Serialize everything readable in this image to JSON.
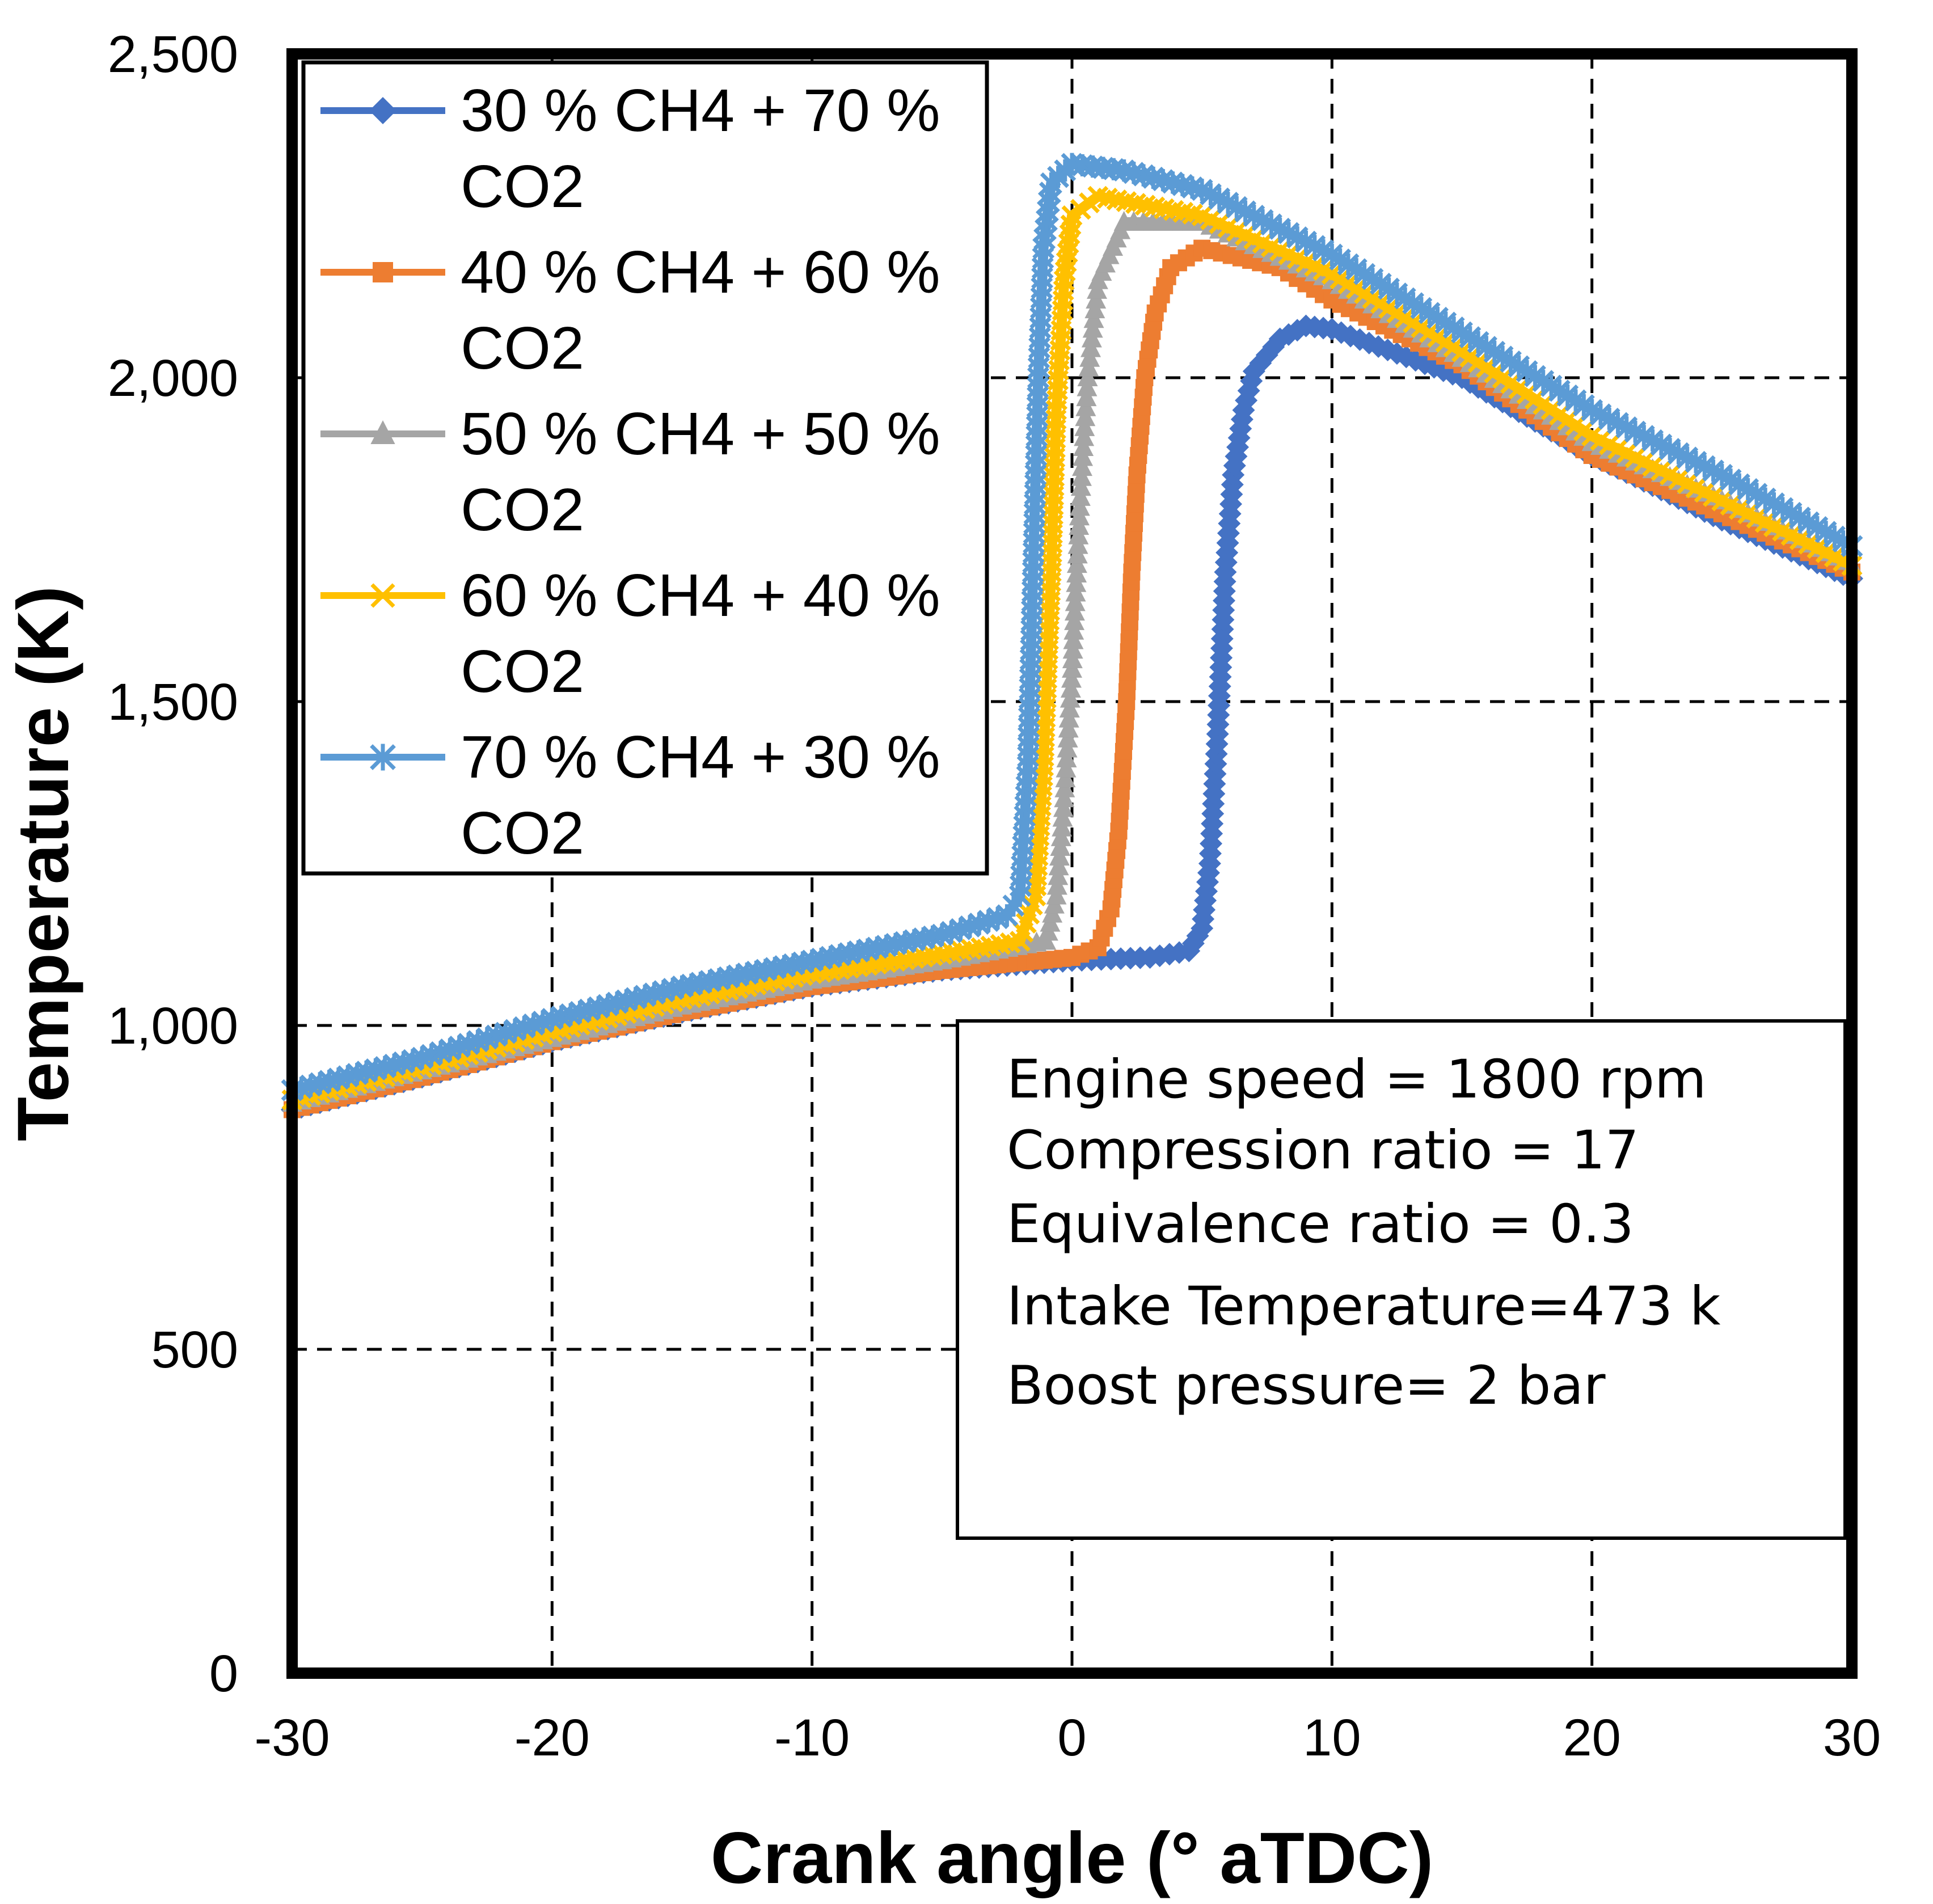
{
  "chart_data": {
    "type": "line",
    "xlabel": "Crank angle (° aTDC)",
    "ylabel": "Temperature (K)",
    "xlim": [
      -30,
      30
    ],
    "ylim": [
      0,
      2500
    ],
    "x_ticks": [
      -30,
      -20,
      -10,
      0,
      10,
      20,
      30
    ],
    "x_tick_labels": [
      "-30",
      "-20",
      "-10",
      "0",
      "10",
      "20",
      "30"
    ],
    "y_ticks": [
      0,
      500,
      1000,
      1500,
      2000,
      2500
    ],
    "y_tick_labels": [
      "0",
      "500",
      "1,000",
      "1,500",
      "2,000",
      "2,500"
    ],
    "grid": "dashed",
    "legend_position": "top-left",
    "series": [
      {
        "name": "30 % CH4 + 70 % CO2",
        "legend_lines": [
          "30 % CH4 + 70 %",
          "CO2"
        ],
        "color": "#4472C4",
        "marker": "diamond",
        "points": [
          [
            -30,
            870
          ],
          [
            -25,
            920
          ],
          [
            -20,
            975
          ],
          [
            -15,
            1020
          ],
          [
            -10,
            1060
          ],
          [
            -5,
            1085
          ],
          [
            0,
            1100
          ],
          [
            3,
            1105
          ],
          [
            4.5,
            1115
          ],
          [
            5,
            1150
          ],
          [
            5.3,
            1250
          ],
          [
            5.6,
            1450
          ],
          [
            5.9,
            1700
          ],
          [
            6.2,
            1850
          ],
          [
            6.6,
            1950
          ],
          [
            7,
            2010
          ],
          [
            8,
            2060
          ],
          [
            9,
            2080
          ],
          [
            10,
            2075
          ],
          [
            15,
            2000
          ],
          [
            20,
            1880
          ],
          [
            25,
            1780
          ],
          [
            30,
            1690
          ]
        ]
      },
      {
        "name": "40 % CH4 + 60 % CO2",
        "legend_lines": [
          "40 % CH4 + 60 %",
          "CO2"
        ],
        "color": "#ED7D31",
        "marker": "square",
        "points": [
          [
            -30,
            870
          ],
          [
            -25,
            920
          ],
          [
            -20,
            975
          ],
          [
            -15,
            1020
          ],
          [
            -10,
            1060
          ],
          [
            -5,
            1085
          ],
          [
            0,
            1105
          ],
          [
            1,
            1120
          ],
          [
            1.5,
            1180
          ],
          [
            1.8,
            1300
          ],
          [
            2.1,
            1500
          ],
          [
            2.3,
            1700
          ],
          [
            2.5,
            1850
          ],
          [
            2.8,
            2000
          ],
          [
            3.2,
            2100
          ],
          [
            3.8,
            2170
          ],
          [
            5,
            2200
          ],
          [
            8,
            2170
          ],
          [
            10,
            2120
          ],
          [
            15,
            2020
          ],
          [
            20,
            1880
          ],
          [
            25,
            1790
          ],
          [
            30,
            1700
          ]
        ]
      },
      {
        "name": "50 % CH4 + 50 % CO2",
        "legend_lines": [
          "50 % CH4 + 50 %",
          "CO2"
        ],
        "color": "#A5A5A5",
        "marker": "triangle",
        "points": [
          [
            -30,
            880
          ],
          [
            -25,
            930
          ],
          [
            -20,
            980
          ],
          [
            -15,
            1030
          ],
          [
            -10,
            1070
          ],
          [
            -5,
            1100
          ],
          [
            -1,
            1130
          ],
          [
            -0.6,
            1200
          ],
          [
            -0.3,
            1350
          ],
          [
            0,
            1550
          ],
          [
            0.3,
            1800
          ],
          [
            0.6,
            2000
          ],
          [
            1,
            2150
          ],
          [
            2,
            2240
          ],
          [
            5,
            2240
          ],
          [
            10,
            2150
          ],
          [
            15,
            2030
          ],
          [
            20,
            1900
          ],
          [
            25,
            1810
          ],
          [
            30,
            1710
          ]
        ]
      },
      {
        "name": "60 % CH4 + 40 % CO2",
        "legend_lines": [
          "60 % CH4 + 40 %",
          "CO2"
        ],
        "color": "#FFC000",
        "marker": "x",
        "points": [
          [
            -30,
            885
          ],
          [
            -25,
            935
          ],
          [
            -20,
            990
          ],
          [
            -15,
            1040
          ],
          [
            -10,
            1080
          ],
          [
            -5,
            1110
          ],
          [
            -2,
            1130
          ],
          [
            -1.4,
            1200
          ],
          [
            -1.1,
            1400
          ],
          [
            -0.8,
            1700
          ],
          [
            -0.6,
            1950
          ],
          [
            -0.3,
            2150
          ],
          [
            0,
            2250
          ],
          [
            1,
            2280
          ],
          [
            5,
            2250
          ],
          [
            10,
            2160
          ],
          [
            15,
            2040
          ],
          [
            20,
            1910
          ],
          [
            25,
            1810
          ],
          [
            30,
            1710
          ]
        ]
      },
      {
        "name": "70 % CH4 + 30 % CO2",
        "legend_lines": [
          "70 % CH4 + 30 %",
          "CO2"
        ],
        "color": "#5B9BD5",
        "marker": "star",
        "points": [
          [
            -30,
            900
          ],
          [
            -25,
            950
          ],
          [
            -20,
            1010
          ],
          [
            -15,
            1060
          ],
          [
            -10,
            1100
          ],
          [
            -5,
            1140
          ],
          [
            -2.5,
            1170
          ],
          [
            -2,
            1200
          ],
          [
            -1.7,
            1400
          ],
          [
            -1.5,
            1700
          ],
          [
            -1.3,
            2000
          ],
          [
            -1.1,
            2200
          ],
          [
            -0.8,
            2300
          ],
          [
            0,
            2330
          ],
          [
            2,
            2320
          ],
          [
            5,
            2290
          ],
          [
            10,
            2190
          ],
          [
            15,
            2070
          ],
          [
            20,
            1950
          ],
          [
            25,
            1850
          ],
          [
            30,
            1740
          ]
        ]
      }
    ],
    "annotations": [
      "Engine speed = 1800 rpm",
      "Compression ratio = 17",
      "Equivalence ratio = 0.3",
      "Intake Temperature=473 k",
      "Boost pressure= 2 bar"
    ]
  }
}
